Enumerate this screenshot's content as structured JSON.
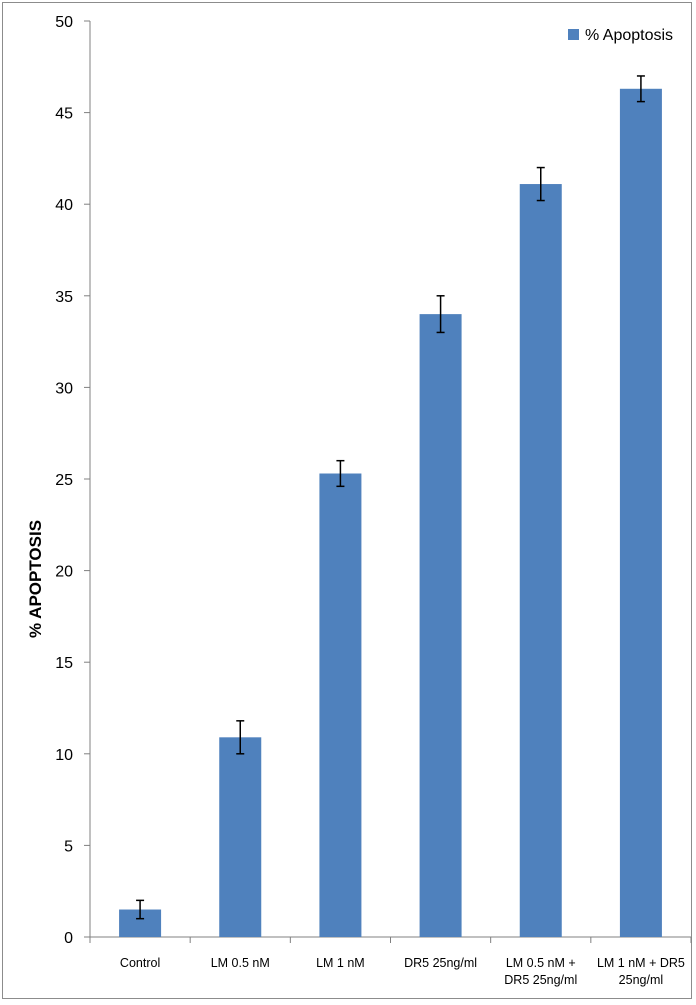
{
  "chart_data": {
    "type": "bar",
    "title": "",
    "xlabel": "",
    "ylabel": "% APOPTOSIS",
    "ylim": [
      0,
      50
    ],
    "yticks": [
      "0",
      "5",
      "10",
      "15",
      "20",
      "25",
      "30",
      "35",
      "40",
      "45",
      "50"
    ],
    "categories": [
      [
        "Control"
      ],
      [
        "LM 0.5 nM"
      ],
      [
        "LM 1 nM"
      ],
      [
        "DR5 25ng/ml"
      ],
      [
        "LM 0.5 nM +",
        "DR5 25ng/ml"
      ],
      [
        "LM 1 nM + DR5",
        "25ng/ml"
      ]
    ],
    "series": [
      {
        "name": "% Apoptosis",
        "color": "#4f81bd",
        "values": [
          1.5,
          10.9,
          25.3,
          34.0,
          41.1,
          46.3
        ],
        "errors": [
          0.5,
          0.9,
          0.7,
          1.0,
          0.9,
          0.7
        ]
      }
    ],
    "grid": false,
    "legend": "top-right"
  }
}
